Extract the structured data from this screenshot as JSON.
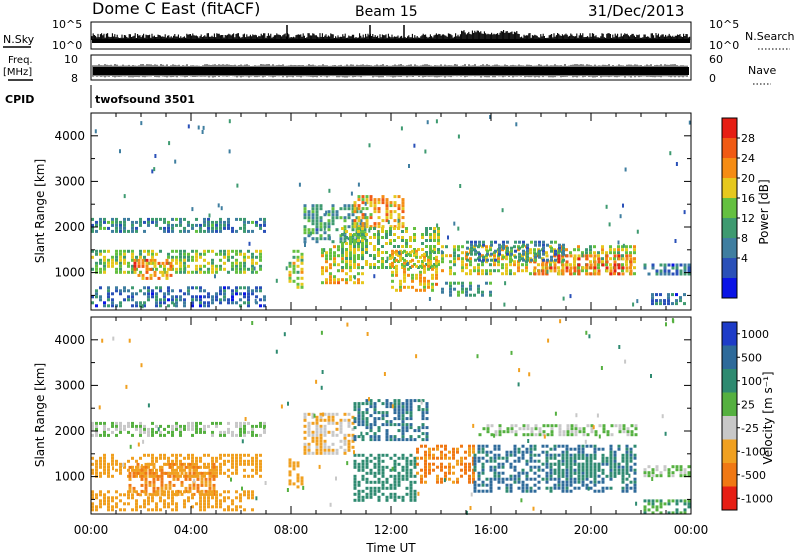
{
  "header": {
    "station": "Dome C East (fitACF)",
    "beam": "Beam 15",
    "date": "31/Dec/2013"
  },
  "top_panels": {
    "nsky_label": "N.Sky",
    "nsky_ticks": [
      "10^5",
      "10^0"
    ],
    "nsky_ticks_right": [
      "10^5",
      "10^0"
    ],
    "nsearch_label": "N.Search",
    "freq_label": "Freq.",
    "freq_unit": "[MHz]",
    "freq_ticks": [
      "10",
      "8"
    ],
    "nave_ticks": [
      "60",
      "0"
    ],
    "nave_label": "Nave",
    "cpid_label": "CPID",
    "cpid_value": "twofsound 3501"
  },
  "x_axis": {
    "label": "Time UT",
    "ticks": [
      "00:00",
      "04:00",
      "08:00",
      "12:00",
      "16:00",
      "20:00",
      "00:00"
    ]
  },
  "colorbars": {
    "power": {
      "label": "Power [dB]",
      "ticks": [
        "28",
        "24",
        "20",
        "16",
        "12",
        "8",
        "4"
      ],
      "colors": [
        "#0a14e6",
        "#2a50b8",
        "#3f7ea0",
        "#3e9a70",
        "#64c040",
        "#e6c81e",
        "#f58c14",
        "#f05a14",
        "#e61e14"
      ]
    },
    "velocity": {
      "label": "Velocity [m s⁻¹]",
      "ticks": [
        "1000",
        "500",
        "100",
        "25",
        "-25",
        "-100",
        "-500",
        "-1000"
      ],
      "colors": [
        "#1e3cc8",
        "#2e6a9a",
        "#2e8a70",
        "#55b040",
        "#c8c8c8",
        "#f0a020",
        "#f07814",
        "#e61e14"
      ]
    }
  },
  "chart_data": [
    {
      "type": "heatmap",
      "panel": "power",
      "xlabel": "Time UT",
      "ylabel": "Slant Range [km]",
      "xlim": [
        0,
        24
      ],
      "ylim": [
        180,
        4500
      ],
      "y_ticks": [
        1000,
        2000,
        3000,
        4000
      ],
      "units": "dB",
      "patches": [
        {
          "x": [
            0.0,
            6.9
          ],
          "y": [
            1900,
            2200
          ],
          "value": 10
        },
        {
          "x": [
            0.0,
            6.8
          ],
          "y": [
            1000,
            1500
          ],
          "value": 16
        },
        {
          "x": [
            1.7,
            3.3
          ],
          "y": [
            850,
            1300
          ],
          "value": 24
        },
        {
          "x": [
            0.0,
            7.0
          ],
          "y": [
            300,
            700
          ],
          "value": 8
        },
        {
          "x": [
            7.9,
            8.5
          ],
          "y": [
            700,
            1500
          ],
          "value": 18
        },
        {
          "x": [
            8.5,
            11.0
          ],
          "y": [
            1700,
            2500
          ],
          "value": 12
        },
        {
          "x": [
            9.2,
            10.9
          ],
          "y": [
            800,
            1600
          ],
          "value": 20
        },
        {
          "x": [
            10.5,
            12.5
          ],
          "y": [
            2000,
            2700
          ],
          "value": 22
        },
        {
          "x": [
            10.0,
            14.0
          ],
          "y": [
            1100,
            2000
          ],
          "value": 16
        },
        {
          "x": [
            12.0,
            13.8
          ],
          "y": [
            600,
            1500
          ],
          "value": 20
        },
        {
          "x": [
            14.0,
            21.8
          ],
          "y": [
            1000,
            1600
          ],
          "value": 18
        },
        {
          "x": [
            17.7,
            21.7
          ],
          "y": [
            1000,
            1400
          ],
          "value": 25
        },
        {
          "x": [
            15.0,
            19.0
          ],
          "y": [
            1300,
            1700
          ],
          "value": 10
        },
        {
          "x": [
            14.0,
            16.0
          ],
          "y": [
            500,
            800
          ],
          "value": 12
        },
        {
          "x": [
            22.1,
            23.9
          ],
          "y": [
            1000,
            1200
          ],
          "value": 8
        },
        {
          "x": [
            22.4,
            23.9
          ],
          "y": [
            350,
            550
          ],
          "value": 8
        }
      ]
    },
    {
      "type": "heatmap",
      "panel": "velocity",
      "xlabel": "Time UT",
      "ylabel": "Slant Range [km]",
      "xlim": [
        0,
        24
      ],
      "ylim": [
        180,
        4500
      ],
      "y_ticks": [
        1000,
        2000,
        3000,
        4000
      ],
      "units": "m s-1",
      "patches": [
        {
          "x": [
            0.0,
            6.9
          ],
          "y": [
            1900,
            2200
          ],
          "value": 0
        },
        {
          "x": [
            0.0,
            6.8
          ],
          "y": [
            1000,
            1500
          ],
          "value": -150
        },
        {
          "x": [
            1.5,
            5.0
          ],
          "y": [
            600,
            1300
          ],
          "value": -300
        },
        {
          "x": [
            0.0,
            6.5
          ],
          "y": [
            300,
            700
          ],
          "value": -120
        },
        {
          "x": [
            7.9,
            8.5
          ],
          "y": [
            800,
            1400
          ],
          "value": -200
        },
        {
          "x": [
            8.5,
            10.5
          ],
          "y": [
            1500,
            2400
          ],
          "value": -60
        },
        {
          "x": [
            10.5,
            13.5
          ],
          "y": [
            1800,
            2700
          ],
          "value": 300
        },
        {
          "x": [
            10.5,
            13.0
          ],
          "y": [
            500,
            1500
          ],
          "value": 150
        },
        {
          "x": [
            13.0,
            15.3
          ],
          "y": [
            900,
            1700
          ],
          "value": -300
        },
        {
          "x": [
            15.3,
            21.8
          ],
          "y": [
            700,
            1700
          ],
          "value": 350
        },
        {
          "x": [
            18.5,
            21.5
          ],
          "y": [
            1000,
            1500
          ],
          "value": 150
        },
        {
          "x": [
            15.5,
            21.8
          ],
          "y": [
            1950,
            2150
          ],
          "value": 0
        },
        {
          "x": [
            22.1,
            23.9
          ],
          "y": [
            1050,
            1250
          ],
          "value": 0
        },
        {
          "x": [
            22.1,
            23.9
          ],
          "y": [
            200,
            500
          ],
          "value": 60
        }
      ]
    }
  ]
}
